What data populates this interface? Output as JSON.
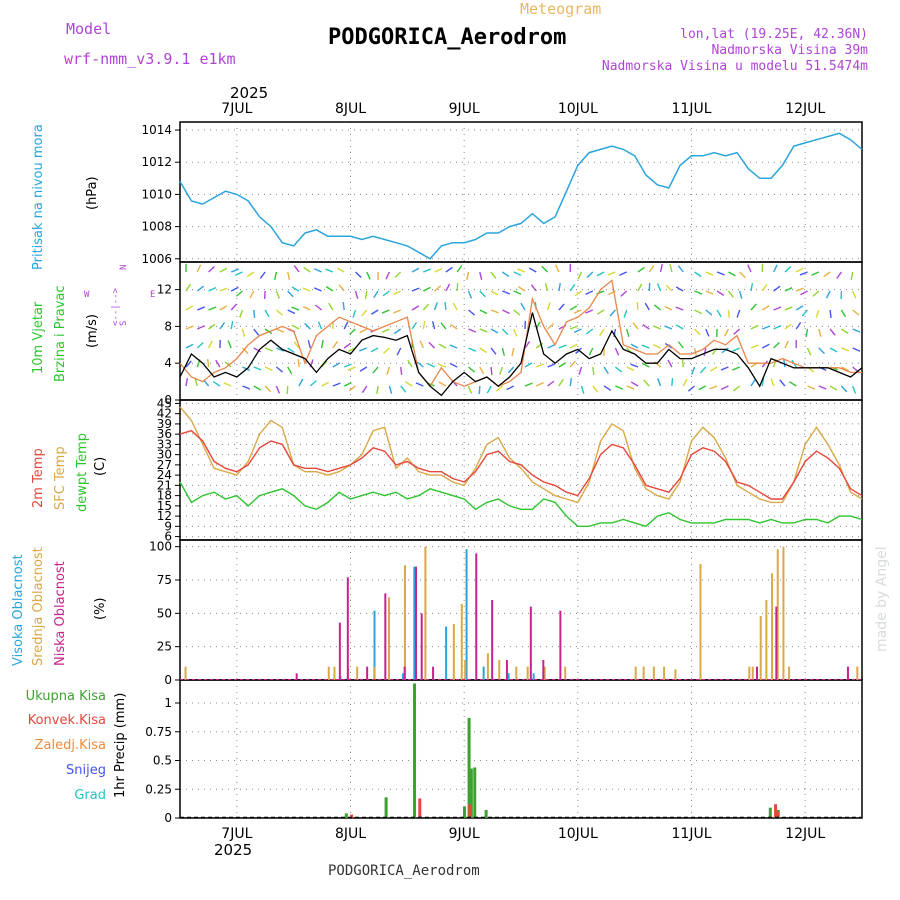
{
  "header": {
    "model_label": "Model",
    "model_name": "wrf-nmm_v3.9.1  e1km",
    "meteogram_label": "Meteogram",
    "station": "PODGORICA_Aerodrom",
    "lonlat": "lon,lat (19.25E, 42.36N)",
    "elevation": "Nadmorska Visina 39m",
    "model_elevation": "Nadmorska Visina u modelu 51.5474m",
    "footer_station": "PODGORICA_Aerodrom",
    "watermark": "made by Angel",
    "year_top": "2025",
    "year_bottom": "2025"
  },
  "colors": {
    "pressure": "#2aa4dc",
    "wind_black": "#000000",
    "gust": "#e8864a",
    "temp2m": "#e6473c",
    "sfc": "#d9a847",
    "dew": "#2ec42e",
    "high": "#2aa4dc",
    "mid": "#d9a847",
    "low": "#c8228e",
    "total": "#3ea030",
    "conv": "#e6473c",
    "frz": "#f08a3c",
    "snow": "#4455ee",
    "hail": "#22c4c4",
    "purple": "#b044d8"
  },
  "chart_data": [
    {
      "type": "line",
      "panel": "pressure",
      "ylabel_main": "Pritisak na nivou mora",
      "ylabel_unit": "(hPa)",
      "ylim": [
        1005.8,
        1014.5
      ],
      "yticks": [
        "1006",
        "1008",
        "1010",
        "1012",
        "1014"
      ],
      "x_day_ticks": [
        "7JUL",
        "8JUL",
        "9JUL",
        "10JUL",
        "11JUL",
        "12JUL"
      ],
      "x_day_positions": [
        1,
        2,
        3,
        4,
        5,
        6
      ],
      "xlim": [
        0.5,
        6.5
      ],
      "series": [
        {
          "x": [
            0.5,
            0.6,
            0.7,
            0.8,
            0.9,
            1.0,
            1.1,
            1.2,
            1.3,
            1.4,
            1.5,
            1.6,
            1.7,
            1.8,
            1.9,
            2.0,
            2.1,
            2.2,
            2.3,
            2.4,
            2.5,
            2.6,
            2.7,
            2.8,
            2.9,
            3.0,
            3.1,
            3.2,
            3.3,
            3.4,
            3.5,
            3.6,
            3.7,
            3.8,
            3.9,
            4.0,
            4.1,
            4.2,
            4.3,
            4.4,
            4.5,
            4.6,
            4.7,
            4.8,
            4.9,
            5.0,
            5.1,
            5.2,
            5.3,
            5.4,
            5.5,
            5.6,
            5.7,
            5.8,
            5.9,
            6.0,
            6.1,
            6.2,
            6.3,
            6.4,
            6.5
          ],
          "values": [
            1010.8,
            1009.6,
            1009.4,
            1009.8,
            1010.2,
            1010.0,
            1009.6,
            1008.6,
            1008.0,
            1007.0,
            1006.8,
            1007.6,
            1007.8,
            1007.4,
            1007.4,
            1007.4,
            1007.2,
            1007.4,
            1007.2,
            1007.0,
            1006.8,
            1006.4,
            1006.0,
            1006.8,
            1007.0,
            1007.0,
            1007.2,
            1007.6,
            1007.6,
            1008.0,
            1008.2,
            1008.8,
            1008.2,
            1008.6,
            1010.2,
            1011.8,
            1012.6,
            1012.8,
            1013.0,
            1012.8,
            1012.4,
            1011.2,
            1010.6,
            1010.4,
            1011.8,
            1012.4,
            1012.4,
            1012.6,
            1012.4,
            1012.6,
            1011.6,
            1011.0,
            1011.0,
            1011.8,
            1013.0,
            1013.2,
            1013.4,
            1013.6,
            1013.8,
            1013.4,
            1012.8
          ]
        }
      ]
    },
    {
      "type": "line",
      "panel": "wind",
      "ylabel_1": "10m Vjetar",
      "ylabel_2": "Brzina i Pravac",
      "ylabel_unit": "(m/s)",
      "compass_n": "N",
      "compass_s": "S",
      "compass_w": "W",
      "compass_e": "E",
      "compass_arrows": "<--|-->",
      "ylim": [
        0,
        15
      ],
      "yticks": [
        "0",
        "4",
        "8",
        "12"
      ],
      "series": [
        {
          "name": "speed",
          "x": [
            0.5,
            0.6,
            0.7,
            0.8,
            0.9,
            1.0,
            1.1,
            1.2,
            1.3,
            1.4,
            1.5,
            1.6,
            1.7,
            1.8,
            1.9,
            2.0,
            2.1,
            2.2,
            2.3,
            2.4,
            2.5,
            2.6,
            2.7,
            2.8,
            2.9,
            3.0,
            3.1,
            3.2,
            3.3,
            3.4,
            3.5,
            3.6,
            3.7,
            3.8,
            3.9,
            4.0,
            4.1,
            4.2,
            4.3,
            4.4,
            4.5,
            4.6,
            4.7,
            4.8,
            4.9,
            5.0,
            5.1,
            5.2,
            5.3,
            5.4,
            5.5,
            5.6,
            5.7,
            5.8,
            5.9,
            6.0,
            6.1,
            6.2,
            6.3,
            6.4,
            6.5
          ],
          "values": [
            2.5,
            5.0,
            4.0,
            2.5,
            3.0,
            2.5,
            3.5,
            5.5,
            6.5,
            5.5,
            5.0,
            4.5,
            3.0,
            4.5,
            5.5,
            5.0,
            6.5,
            7.0,
            6.8,
            6.5,
            7.0,
            3.0,
            1.5,
            0.5,
            2.0,
            3.0,
            2.0,
            2.5,
            1.5,
            2.5,
            4.0,
            9.5,
            5.0,
            4.0,
            5.0,
            5.5,
            4.5,
            5.0,
            7.5,
            5.5,
            5.0,
            4.0,
            4.0,
            5.5,
            4.5,
            4.5,
            5.0,
            5.5,
            5.5,
            5.0,
            3.5,
            1.5,
            4.5,
            4.0,
            3.5,
            3.5,
            3.5,
            3.5,
            3.0,
            2.5,
            3.5
          ]
        },
        {
          "name": "gust",
          "x": [
            0.5,
            0.6,
            0.7,
            0.8,
            0.9,
            1.0,
            1.1,
            1.2,
            1.3,
            1.4,
            1.5,
            1.6,
            1.7,
            1.8,
            1.9,
            2.0,
            2.1,
            2.2,
            2.3,
            2.4,
            2.5,
            2.6,
            2.7,
            2.8,
            2.9,
            3.0,
            3.1,
            3.2,
            3.3,
            3.4,
            3.5,
            3.6,
            3.7,
            3.8,
            3.9,
            4.0,
            4.1,
            4.2,
            4.3,
            4.4,
            4.5,
            4.6,
            4.7,
            4.8,
            4.9,
            5.0,
            5.1,
            5.2,
            5.3,
            5.4,
            5.5,
            5.6,
            5.7,
            5.8,
            5.9,
            6.0,
            6.1,
            6.2,
            6.3,
            6.4,
            6.5
          ],
          "values": [
            4.0,
            2.5,
            2.0,
            3.0,
            3.5,
            4.5,
            6.0,
            7.0,
            7.5,
            8.0,
            7.5,
            4.0,
            7.0,
            8.0,
            9.0,
            8.5,
            8.0,
            7.5,
            8.0,
            8.5,
            9.0,
            3.0,
            1.5,
            3.5,
            2.0,
            1.5,
            2.0,
            2.5,
            1.5,
            2.0,
            3.0,
            11.0,
            8.0,
            6.0,
            8.5,
            9.0,
            10.0,
            12.0,
            13.0,
            6.0,
            5.5,
            5.0,
            5.0,
            6.0,
            5.0,
            5.0,
            5.5,
            6.5,
            6.0,
            7.0,
            4.0,
            4.0,
            4.0,
            4.5,
            4.0,
            3.5,
            3.5,
            3.5,
            3.5,
            3.0,
            3.0
          ]
        }
      ]
    },
    {
      "type": "line",
      "panel": "temperature",
      "ylabel_1": "2m Temp",
      "ylabel_2": "SFC Temp",
      "ylabel_3": "dewpt Temp",
      "ylabel_unit": "(C)",
      "ylim": [
        5,
        46
      ],
      "yticks": [
        "6",
        "9",
        "12",
        "15",
        "18",
        "21",
        "24",
        "27",
        "30",
        "33",
        "36",
        "39",
        "42",
        "45"
      ],
      "series": [
        {
          "name": "2m Temp",
          "x": [
            0.5,
            0.6,
            0.7,
            0.8,
            0.9,
            1.0,
            1.1,
            1.2,
            1.3,
            1.4,
            1.5,
            1.6,
            1.7,
            1.8,
            1.9,
            2.0,
            2.1,
            2.2,
            2.3,
            2.4,
            2.5,
            2.6,
            2.7,
            2.8,
            2.9,
            3.0,
            3.1,
            3.2,
            3.3,
            3.4,
            3.5,
            3.6,
            3.7,
            3.8,
            3.9,
            4.0,
            4.1,
            4.2,
            4.3,
            4.4,
            4.5,
            4.6,
            4.7,
            4.8,
            4.9,
            5.0,
            5.1,
            5.2,
            5.3,
            5.4,
            5.5,
            5.6,
            5.7,
            5.8,
            5.9,
            6.0,
            6.1,
            6.2,
            6.3,
            6.4,
            6.5
          ],
          "values": [
            36,
            37,
            34,
            28,
            26,
            25,
            27,
            32,
            34,
            33,
            27,
            26,
            26,
            25,
            26,
            27,
            29,
            32,
            31,
            27,
            28,
            26,
            25,
            25,
            23,
            22,
            25,
            30,
            31,
            28,
            27,
            24,
            22,
            21,
            19,
            18,
            23,
            30,
            33,
            32,
            27,
            21,
            20,
            19,
            23,
            30,
            32,
            31,
            28,
            22,
            21,
            19,
            17,
            17,
            22,
            28,
            31,
            29,
            26,
            20,
            18
          ]
        },
        {
          "name": "SFC Temp",
          "x": [
            0.5,
            0.6,
            0.7,
            0.8,
            0.9,
            1.0,
            1.1,
            1.2,
            1.3,
            1.4,
            1.5,
            1.6,
            1.7,
            1.8,
            1.9,
            2.0,
            2.1,
            2.2,
            2.3,
            2.4,
            2.5,
            2.6,
            2.7,
            2.8,
            2.9,
            3.0,
            3.1,
            3.2,
            3.3,
            3.4,
            3.5,
            3.6,
            3.7,
            3.8,
            3.9,
            4.0,
            4.1,
            4.2,
            4.3,
            4.4,
            4.5,
            4.6,
            4.7,
            4.8,
            4.9,
            5.0,
            5.1,
            5.2,
            5.3,
            5.4,
            5.5,
            5.6,
            5.7,
            5.8,
            5.9,
            6.0,
            6.1,
            6.2,
            6.3,
            6.4,
            6.5
          ],
          "values": [
            44,
            40,
            33,
            26,
            25,
            24,
            28,
            36,
            40,
            38,
            27,
            25,
            25,
            24,
            25,
            27,
            30,
            37,
            38,
            26,
            29,
            25,
            24,
            24,
            22,
            21,
            26,
            33,
            35,
            29,
            26,
            22,
            20,
            18,
            17,
            16,
            22,
            34,
            39,
            37,
            26,
            20,
            18,
            17,
            22,
            34,
            38,
            35,
            29,
            21,
            19,
            17,
            16,
            16,
            22,
            33,
            38,
            33,
            27,
            19,
            17
          ]
        },
        {
          "name": "dewpt Temp",
          "x": [
            0.5,
            0.6,
            0.7,
            0.8,
            0.9,
            1.0,
            1.1,
            1.2,
            1.3,
            1.4,
            1.5,
            1.6,
            1.7,
            1.8,
            1.9,
            2.0,
            2.1,
            2.2,
            2.3,
            2.4,
            2.5,
            2.6,
            2.7,
            2.8,
            2.9,
            3.0,
            3.1,
            3.2,
            3.3,
            3.4,
            3.5,
            3.6,
            3.7,
            3.8,
            3.9,
            4.0,
            4.1,
            4.2,
            4.3,
            4.4,
            4.5,
            4.6,
            4.7,
            4.8,
            4.9,
            5.0,
            5.1,
            5.2,
            5.3,
            5.4,
            5.5,
            5.6,
            5.7,
            5.8,
            5.9,
            6.0,
            6.1,
            6.2,
            6.3,
            6.4,
            6.5
          ],
          "values": [
            22,
            16,
            18,
            19,
            17,
            18,
            15,
            18,
            19,
            20,
            18,
            15,
            14,
            16,
            19,
            17,
            18,
            19,
            18,
            19,
            17,
            18,
            20,
            19,
            18,
            17,
            14,
            16,
            17,
            15,
            14,
            14,
            17,
            16,
            12,
            9,
            9,
            10,
            10,
            11,
            10,
            9,
            12,
            13,
            11,
            10,
            10,
            10,
            11,
            11,
            11,
            10,
            11,
            10,
            10,
            11,
            11,
            10,
            12,
            12,
            11
          ]
        }
      ]
    },
    {
      "type": "bar",
      "panel": "clouds",
      "ylabel_1": "Visoka Oblacnost",
      "ylabel_2": "Srednja Oblacnost",
      "ylabel_3": "Niska Oblacnost",
      "ylabel_unit": "(%)",
      "ylim": [
        0,
        105
      ],
      "yticks": [
        "0",
        "25",
        "50",
        "75",
        "100"
      ],
      "series": [
        {
          "name": "Visoka Oblacnost",
          "x": [
            1.92,
            2.22,
            2.47,
            2.57,
            2.85,
            3.03,
            3.18,
            3.4,
            3.62
          ],
          "values": [
            3,
            52,
            5,
            85,
            40,
            98,
            10,
            5,
            5
          ]
        },
        {
          "name": "Srednja Oblacnost",
          "x": [
            0.54,
            1.8,
            1.85,
            1.97,
            2.05,
            2.2,
            2.33,
            2.47,
            2.65,
            2.9,
            2.97,
            3.0,
            3.2,
            3.3,
            3.45,
            3.55,
            3.7,
            3.88,
            4.5,
            4.57,
            4.66,
            4.75,
            4.85,
            5.07,
            5.5,
            5.53,
            5.6,
            5.65,
            5.7,
            5.75,
            5.8,
            5.85,
            6.45
          ],
          "values": [
            10,
            10,
            10,
            10,
            10,
            10,
            62,
            86,
            100,
            42,
            57,
            15,
            20,
            15,
            10,
            10,
            10,
            10,
            10,
            10,
            10,
            10,
            8,
            87,
            10,
            10,
            48,
            60,
            80,
            98,
            100,
            10,
            10
          ]
        },
        {
          "name": "Niska Oblacnost",
          "x": [
            1.5,
            1.88,
            1.95,
            2.12,
            2.28,
            2.45,
            2.55,
            2.6,
            2.7,
            3.08,
            3.22,
            3.35,
            3.56,
            3.67,
            3.82,
            5.55,
            5.72,
            6.35
          ],
          "values": [
            5,
            43,
            77,
            10,
            65,
            10,
            85,
            50,
            10,
            95,
            60,
            15,
            55,
            15,
            52,
            10,
            55,
            10
          ]
        }
      ]
    },
    {
      "type": "bar",
      "panel": "precipitation",
      "labels": [
        "Ukupna  Kisa",
        "Konvek.Kisa",
        "Zaledj.Kisa",
        "Snijeg",
        "Grad"
      ],
      "ylabel_unit": "1hr Precip (mm)",
      "ylim": [
        0,
        1.2
      ],
      "yticks": [
        "0",
        "0.25",
        "0.5",
        "0.75",
        "1"
      ],
      "series": [
        {
          "name": "Ukupna  Kisa",
          "x": [
            1.95,
            2.3,
            2.55,
            2.99,
            3.03,
            3.05,
            3.08,
            3.18,
            5.68,
            5.75
          ],
          "values": [
            0.04,
            0.18,
            1.17,
            0.1,
            0.87,
            0.43,
            0.44,
            0.07,
            0.09,
            0.07
          ]
        },
        {
          "name": "Konvek.Kisa",
          "x": [
            1.97,
            2.57,
            3.01,
            5.7,
            5.72
          ],
          "values": [
            0.03,
            0.17,
            0.12,
            0.12,
            0.05
          ]
        }
      ]
    }
  ]
}
